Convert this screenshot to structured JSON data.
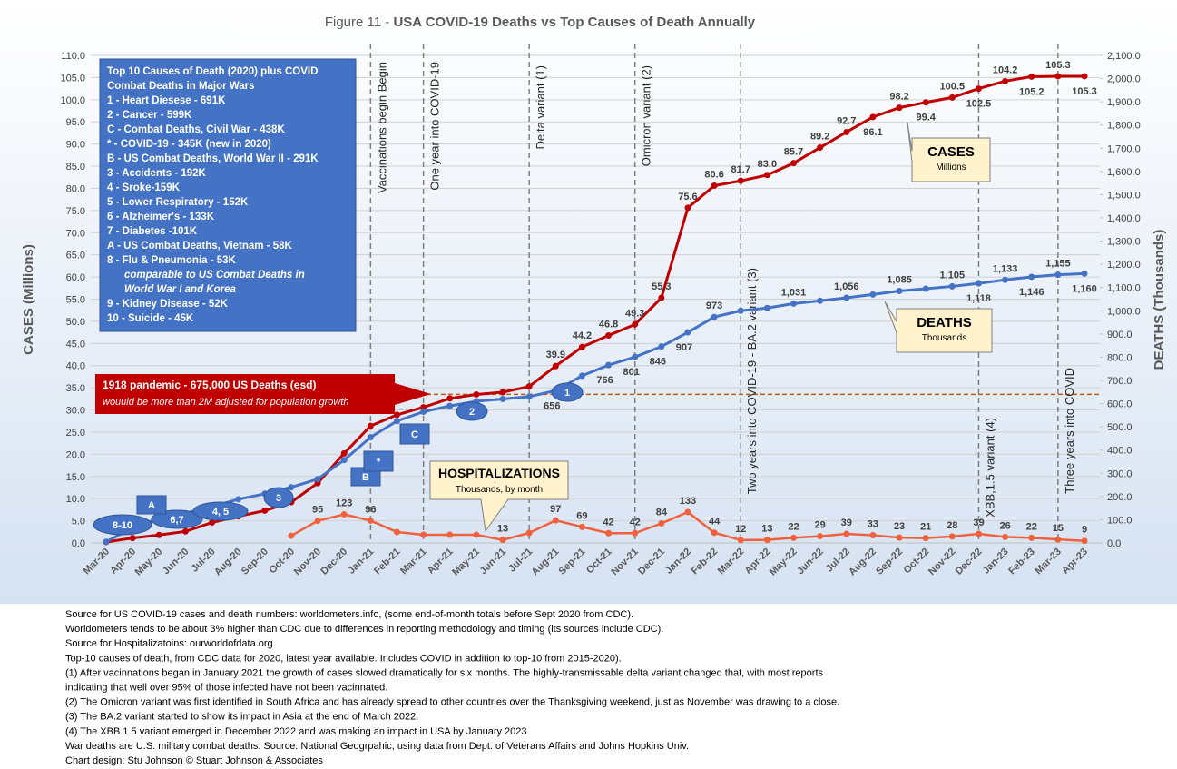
{
  "chart_data": {
    "type": "line",
    "title_number": "Figure 11 -",
    "title": "USA COVID-19 Deaths vs Top Causes of Death Annually",
    "ylabel": "CASES (Millions)",
    "y2label": "DEATHS (Thousands)",
    "categories": [
      "Mar-20",
      "Apr-20",
      "May-20",
      "Jun-20",
      "Jul-20",
      "Aug-20",
      "Sep-20",
      "Oct-20",
      "Nov-20",
      "Dec-20",
      "Jan-21",
      "Feb-21",
      "Mar-21",
      "Apr-21",
      "May-21",
      "Jun-21",
      "Jul-21",
      "Aug-21",
      "Sep-21",
      "Oct-21",
      "Nov-21",
      "Dec-21",
      "Jan-22",
      "Feb-22",
      "Mar-22",
      "Apr-22",
      "May-22",
      "Jun-22",
      "Jul-22",
      "Aug-22",
      "Sep-22",
      "Oct-22",
      "Nov-22",
      "Dec-22",
      "Jan-23",
      "Feb-23",
      "Mar-23",
      "Apr-23"
    ],
    "series": [
      {
        "name": "CASES",
        "sub": "Millions",
        "color": "#c00000",
        "axis": "y",
        "values": [
          0.2,
          1.1,
          1.8,
          2.6,
          4.6,
          6.0,
          7.3,
          9.2,
          13.5,
          20.2,
          26.4,
          28.9,
          30.6,
          32.6,
          33.5,
          34.0,
          35.3,
          39.9,
          44.2,
          46.8,
          49.3,
          55.3,
          75.6,
          80.6,
          81.7,
          83.0,
          85.7,
          89.2,
          92.7,
          96.1,
          98.2,
          99.4,
          100.5,
          102.5,
          104.2,
          105.2,
          105.3,
          105.3
        ],
        "value_labels": [
          null,
          null,
          null,
          null,
          null,
          null,
          null,
          null,
          null,
          null,
          null,
          null,
          null,
          null,
          null,
          null,
          null,
          "39.9",
          "44.2",
          "46.8",
          "49.3",
          "55.3",
          "75.6",
          "80.6",
          "81.7",
          "83.0",
          "85.7",
          "89.2",
          "92.7",
          "96.1",
          "98.2",
          "99.4",
          "100.5",
          "102.5",
          "104.2",
          "105.2",
          "105.3",
          "105.3"
        ]
      },
      {
        "name": "DEATHS",
        "sub": "Thousands",
        "color": "#4472c4",
        "axis": "y2",
        "values": [
          5,
          65,
          107,
          128,
          156,
          188,
          212,
          240,
          275,
          357,
          455,
          525,
          565,
          590,
          610,
          620,
          630,
          656,
          720,
          766,
          801,
          846,
          907,
          973,
          1000,
          1012,
          1031,
          1043,
          1056,
          1070,
          1085,
          1095,
          1105,
          1118,
          1133,
          1146,
          1155,
          1160
        ],
        "value_labels": [
          null,
          null,
          null,
          null,
          null,
          null,
          null,
          null,
          null,
          null,
          null,
          null,
          null,
          null,
          null,
          null,
          null,
          "656",
          null,
          "766",
          "801",
          "846",
          "907",
          "973",
          null,
          null,
          "1,031",
          null,
          "1,056",
          null,
          "1,085",
          null,
          "1,105",
          "1,118",
          "1,133",
          "1,146",
          "1,155",
          "1,160"
        ]
      },
      {
        "name": "HOSPITALIZATIONS",
        "sub": "Thousands, by month",
        "color": "#f0603c",
        "axis": "y2",
        "values": [
          null,
          null,
          null,
          null,
          null,
          null,
          null,
          31,
          95,
          123,
          96,
          47,
          35,
          35,
          35,
          13,
          43,
          97,
          69,
          42,
          42,
          84,
          133,
          44,
          12,
          13,
          22,
          29,
          39,
          33,
          23,
          21,
          28,
          39,
          26,
          22,
          15,
          9
        ],
        "value_labels": [
          null,
          null,
          null,
          null,
          null,
          null,
          null,
          null,
          "95",
          "123",
          "96",
          null,
          null,
          null,
          null,
          "13",
          null,
          "97",
          "69",
          "42",
          "42",
          "84",
          "133",
          "44",
          "12",
          "13",
          "22",
          "29",
          "39",
          "33",
          "23",
          "21",
          "28",
          "39",
          "26",
          "22",
          "15",
          "9"
        ]
      }
    ],
    "ylim": [
      0,
      110
    ],
    "yticks": [
      {
        "value": 0,
        "label": "0.0"
      },
      {
        "value": 5,
        "label": "5.0"
      },
      {
        "value": 10,
        "label": "10.0"
      },
      {
        "value": 15,
        "label": "15.0"
      },
      {
        "value": 20,
        "label": "20.0"
      },
      {
        "value": 25,
        "label": "25.0"
      },
      {
        "value": 30,
        "label": "30.0"
      },
      {
        "value": 35,
        "label": "35.0"
      },
      {
        "value": 40,
        "label": "40.0"
      },
      {
        "value": 45,
        "label": "45.0"
      },
      {
        "value": 50,
        "label": "50.0"
      },
      {
        "value": 55,
        "label": "55.0"
      },
      {
        "value": 60,
        "label": "60.0"
      },
      {
        "value": 65,
        "label": "65.0"
      },
      {
        "value": 70,
        "label": "70.0"
      },
      {
        "value": 75,
        "label": "75.0"
      },
      {
        "value": 80,
        "label": "80.0"
      },
      {
        "value": 85,
        "label": "85.0"
      },
      {
        "value": 90,
        "label": "90.0"
      },
      {
        "value": 95,
        "label": "95.0"
      },
      {
        "value": 100,
        "label": "100.0"
      },
      {
        "value": 105,
        "label": "105.0"
      },
      {
        "value": 110,
        "label": "110.0"
      }
    ],
    "y2lim": [
      0,
      2100
    ],
    "y2ticks": [
      {
        "value": 0,
        "label": "0.0"
      },
      {
        "value": 100,
        "label": "100.0"
      },
      {
        "value": 200,
        "label": "200.0"
      },
      {
        "value": 300,
        "label": "300.0"
      },
      {
        "value": 400,
        "label": "400.0"
      },
      {
        "value": 500,
        "label": "500.0"
      },
      {
        "value": 600,
        "label": "600.0"
      },
      {
        "value": 700,
        "label": "700.0"
      },
      {
        "value": 800,
        "label": "800.0"
      },
      {
        "value": 900,
        "label": "900.0"
      },
      {
        "value": 1000,
        "label": "1,000.0"
      },
      {
        "value": 1100,
        "label": "1,100.0"
      },
      {
        "value": 1200,
        "label": "1,200.0"
      },
      {
        "value": 1300,
        "label": "1,300.0"
      },
      {
        "value": 1400,
        "label": "1,400.0"
      },
      {
        "value": 1500,
        "label": "1,500.0"
      },
      {
        "value": 1600,
        "label": "1,600.0"
      },
      {
        "value": 1700,
        "label": "1,700.0"
      },
      {
        "value": 1800,
        "label": "1,800.0"
      },
      {
        "value": 1900,
        "label": "1,900.0"
      },
      {
        "value": 2000,
        "label": "2,000.0"
      },
      {
        "value": 2100,
        "label": "2,100.0"
      }
    ],
    "grid": true,
    "reference_line": {
      "value": 640,
      "axis": "y2",
      "color": "#c55a11"
    },
    "pandemic_note": [
      "1918 pandemic - 675,000 US Deaths (esd)",
      "wouuld be more than 2M adjusted for population growth"
    ],
    "events": [
      {
        "text": "Vaccinations begin Begin",
        "category": "Jan-21"
      },
      {
        "text": "One year into COVID-19",
        "category": "Mar-21"
      },
      {
        "text": "Delta variant (1)",
        "category": "Jul-21"
      },
      {
        "text": "Omicron variant (2)",
        "category": "Nov-21"
      },
      {
        "text": "Two years into COVID-19  - BA.2 variant (3)",
        "category": "Mar-22"
      },
      {
        "text": "XBB,1.5 variant (4)",
        "category": "Dec-22"
      },
      {
        "text": "Three years into COVID",
        "category": "Mar-23"
      }
    ],
    "causes_box": [
      "Top 10 Causes of Death (2020) plus COVID",
      "Combat Deaths in Major Wars",
      " 1 - Heart Diesese - 691K",
      " 2 - Cancer - 599K",
      " C - Combat Deaths, Civil War - 438K",
      " * - COVID-19 - 345K  (new in 2020)",
      " B - US Combat Deaths, World War II - 291K",
      " 3 - Accidents - 192K",
      " 4 - Sroke-159K",
      " 5 - Lower Respiratory - 152K",
      " 6 - Alzheimer's - 133K",
      " 7 - Diabetes -101K",
      " A - US Combat Deaths, Vietnam - 58K",
      " 8 - Flu & Pneumonia - 53K",
      "comparable to US Combat Deaths in",
      "World War I and Korea",
      " 9 - Kidney Disease - 52K",
      "10 - Suicide -  45K"
    ],
    "markers": [
      "8-10",
      "6,7",
      "4, 5",
      "3",
      "2",
      "1",
      "A",
      "B",
      "*",
      "C"
    ]
  },
  "footer": [
    "Source for US COVID-19 cases and death numbers: worldometers.info, (some end-of-month totals before Sept 2020 from CDC).",
    "Worldometers tends to be about 3% higher than CDC due to differences in reporting methodology and timing (its sources include CDC).",
    "Source for Hospitalizatoins: ourworldofdata.org",
    "Top-10 causes of death, from CDC data for 2020, latest year available.  Includes COVID in addition to top-10 from 2015-2020).",
    "(1) After vacinnations began in January 2021 the growth of cases slowed dramatically for six months. The highly-transmissable delta variant changed that, with most reports",
    "indicating that well over 95% of those infected have not been vacinnated.",
    "(2) The Omicron variant was first identified in South Africa and has already spread to other countries over the Thanksgiving weekend, just as November was drawing to a close.",
    "(3) The BA.2 variant started to show its impact in Asia at the end of March 2022.",
    "(4) The XBB.1.5 variant emerged in December 2022 and was making an impact in USA by January 2023",
    "War deaths are U.S. military combat deaths.  Source: National Geogrpahic, using data from Dept. of Veterans Affairs and Johns Hopkins Univ.",
    "Chart design: Stu Johnson © Stuart Johnson & Associates"
  ]
}
